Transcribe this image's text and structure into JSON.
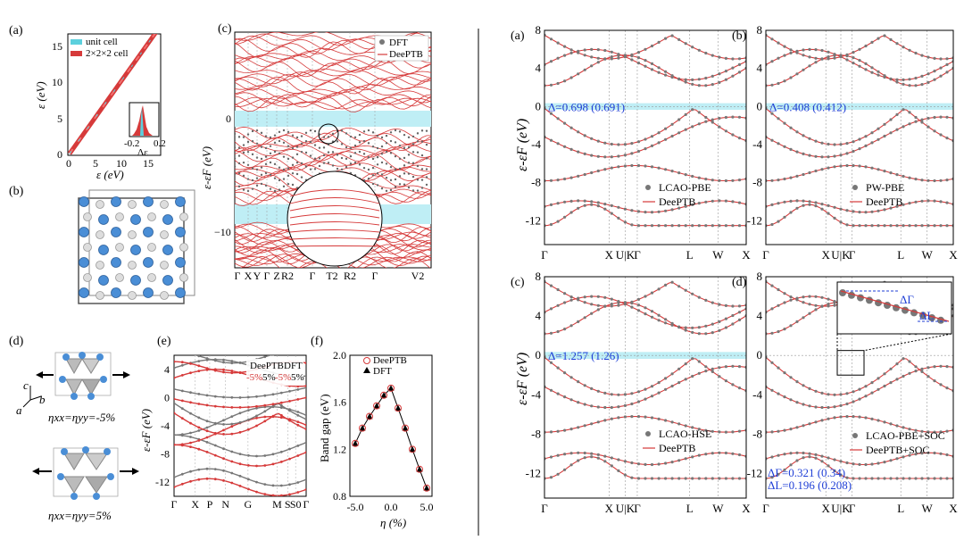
{
  "left": {
    "panel_a": {
      "label": "(a)",
      "xlabel": "ε (eV)",
      "ylabel": "ε (eV)",
      "xticks": [
        "0",
        "5",
        "10",
        "15"
      ],
      "yticks": [
        "0",
        "5",
        "10",
        "15"
      ],
      "legend": [
        "unit cell",
        "2×2×2 cell"
      ],
      "inset_xticks": [
        "-0.2",
        "0.2"
      ],
      "inset_xlabel": "Δε"
    },
    "panel_b": {
      "label": "(b)"
    },
    "panel_c": {
      "label": "(c)",
      "ylabel": "ε-εF (eV)",
      "yticks": [
        "0",
        "−10"
      ],
      "legend": [
        "DFT",
        "DeePTB"
      ],
      "kpoints": [
        "Γ",
        "X",
        "Y",
        "Γ",
        "Z",
        "R2",
        "Γ",
        "T2",
        "R2",
        "Γ",
        "V2"
      ]
    },
    "panel_d": {
      "label": "(d)",
      "axes": [
        "c",
        "b",
        "a"
      ],
      "strain_neg": "ηxx=ηyy=-5%",
      "strain_pos": "ηxx=ηyy=5%"
    },
    "panel_e": {
      "label": "(e)",
      "ylabel": "ε-εF (eV)",
      "yticks": [
        "4",
        "0",
        "-4",
        "-8",
        "-12"
      ],
      "kpoints": [
        "Γ",
        "X",
        "P",
        "N",
        "G",
        "M",
        "S",
        "S0",
        "Γ"
      ],
      "legend": {
        "h1": "DeePTB",
        "h2": "DFT",
        "neg": "-5%",
        "pos": "5%",
        "neg2": "-5%",
        "pos2": "5%"
      }
    },
    "panel_f": {
      "label": "(f)",
      "ylabel": "Band gap (eV)",
      "xlabel": "η (%)",
      "xticks": [
        "-5.0",
        "0.0",
        "5.0"
      ],
      "yticks": [
        "2.0",
        "1.6",
        "1.2",
        "0.8"
      ],
      "legend": [
        "DeePTB",
        "DFT"
      ]
    }
  },
  "right": {
    "ylabel": "ε-εF (eV)",
    "yticks": [
      "8",
      "4",
      "0",
      "-4",
      "-8",
      "-12"
    ],
    "kpoints": [
      "Γ",
      "X",
      "U|K",
      "Γ",
      "L",
      "W",
      "X"
    ],
    "panels": [
      {
        "label": "(a)",
        "gap": "Δ=0.698 (0.691)",
        "legend": [
          "LCAO-PBE",
          "DeePTB"
        ]
      },
      {
        "label": "(b)",
        "gap": "Δ=0.408 (0.412)",
        "legend": [
          "PW-PBE",
          "DeePTB"
        ]
      },
      {
        "label": "(c)",
        "gap": "Δ=1.257 (1.26)",
        "legend": [
          "LCAO-HSE",
          "DeePTB"
        ]
      },
      {
        "label": "(d)",
        "legend": [
          "LCAO-PBE+SOC",
          "DeePTB+SOC"
        ],
        "delta_gamma": "ΔΓ=0.321 (0.34)",
        "delta_l": "ΔL=0.196 (0.208)",
        "inset_gamma": "ΔΓ",
        "inset_l": "ΔL"
      }
    ]
  }
}
